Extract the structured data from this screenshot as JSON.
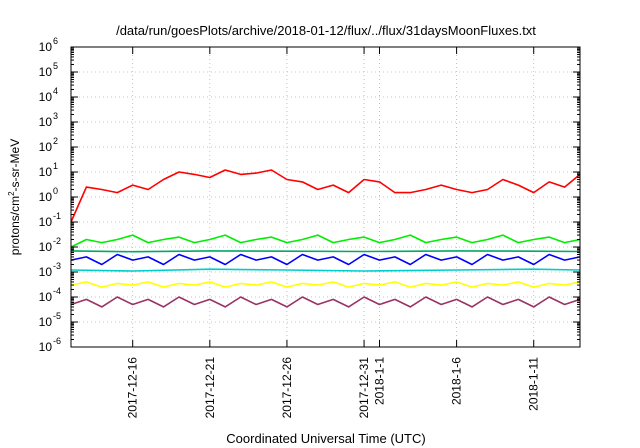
{
  "chart_data": {
    "type": "line",
    "title": "/data/run/goesPlots/archive/2018-01-12/flux/../flux/31daysMoonFluxes.txt",
    "xlabel": "Coordinated Universal Time (UTC)",
    "ylabel": {
      "prefix": "protons/cm",
      "sup": "2",
      "suffix": "-s-sr-MeV"
    },
    "yscale": "log",
    "ylim": [
      1e-06,
      1000000.0
    ],
    "xlim": [
      "2017-12-12",
      "2018-01-14"
    ],
    "grid": true,
    "x_ticks": [
      {
        "date": "2017-12-16",
        "label": "2017-12-16"
      },
      {
        "date": "2017-12-21",
        "label": "2017-12-21"
      },
      {
        "date": "2017-12-26",
        "label": "2017-12-26"
      },
      {
        "date": "2017-12-31",
        "label": "2017-12-31"
      },
      {
        "date": "2018-01-01",
        "label": "2018-1-1"
      },
      {
        "date": "2018-01-06",
        "label": "2018-1-6"
      },
      {
        "date": "2018-01-11",
        "label": "2018-1-11"
      }
    ],
    "y_ticks": [
      {
        "value": 1e-06,
        "base": "10",
        "exp": "-6"
      },
      {
        "value": 1e-05,
        "base": "10",
        "exp": "-5"
      },
      {
        "value": 0.0001,
        "base": "10",
        "exp": "-4"
      },
      {
        "value": 0.001,
        "base": "10",
        "exp": "-3"
      },
      {
        "value": 0.01,
        "base": "10",
        "exp": "-2"
      },
      {
        "value": 0.1,
        "base": "10",
        "exp": "-1"
      },
      {
        "value": 1,
        "base": "10",
        "exp": "0"
      },
      {
        "value": 10,
        "base": "10",
        "exp": "1"
      },
      {
        "value": 100,
        "base": "10",
        "exp": "2"
      },
      {
        "value": 1000,
        "base": "10",
        "exp": "3"
      },
      {
        "value": 10000,
        "base": "10",
        "exp": "4"
      },
      {
        "value": 100000,
        "base": "10",
        "exp": "5"
      },
      {
        "value": 1000000,
        "base": "10",
        "exp": "6"
      }
    ],
    "series": [
      {
        "color": "#ff0000",
        "x": [
          "2017-12-12",
          "2017-12-12T12:00",
          "2017-12-13",
          "2017-12-14",
          "2017-12-15",
          "2017-12-16",
          "2017-12-17",
          "2017-12-18",
          "2017-12-19",
          "2017-12-20",
          "2017-12-21",
          "2017-12-22",
          "2017-12-23",
          "2017-12-24",
          "2017-12-25",
          "2017-12-26",
          "2017-12-27",
          "2017-12-28",
          "2017-12-29",
          "2017-12-30",
          "2017-12-31",
          "2018-01-01",
          "2018-01-02",
          "2018-01-03",
          "2018-01-04",
          "2018-01-05",
          "2018-01-06",
          "2018-01-07",
          "2018-01-08",
          "2018-01-09",
          "2018-01-10",
          "2018-01-11",
          "2018-01-12",
          "2018-01-13",
          "2018-01-14"
        ],
        "y": [
          0.1,
          0.5,
          2.5,
          2,
          1.5,
          3,
          2,
          5,
          10,
          8,
          6,
          12,
          8,
          9,
          12,
          5,
          4,
          2,
          3,
          1.5,
          5,
          4,
          1.5,
          1.5,
          2,
          3,
          2,
          1.5,
          2,
          5,
          3,
          1.5,
          4,
          2.5,
          8
        ]
      },
      {
        "color": "#00ee00",
        "x": [
          "2017-12-12",
          "2017-12-13",
          "2017-12-14",
          "2017-12-15",
          "2017-12-16",
          "2017-12-17",
          "2017-12-18",
          "2017-12-19",
          "2017-12-20",
          "2017-12-21",
          "2017-12-22",
          "2017-12-23",
          "2017-12-24",
          "2017-12-25",
          "2017-12-26",
          "2017-12-27",
          "2017-12-28",
          "2017-12-29",
          "2017-12-30",
          "2017-12-31",
          "2018-01-01",
          "2018-01-02",
          "2018-01-03",
          "2018-01-04",
          "2018-01-05",
          "2018-01-06",
          "2018-01-07",
          "2018-01-08",
          "2018-01-09",
          "2018-01-10",
          "2018-01-11",
          "2018-01-12",
          "2018-01-13",
          "2018-01-14"
        ],
        "y": [
          0.01,
          0.02,
          0.015,
          0.02,
          0.03,
          0.015,
          0.02,
          0.025,
          0.015,
          0.02,
          0.03,
          0.015,
          0.02,
          0.025,
          0.015,
          0.02,
          0.03,
          0.015,
          0.02,
          0.025,
          0.015,
          0.02,
          0.03,
          0.015,
          0.02,
          0.025,
          0.015,
          0.02,
          0.03,
          0.015,
          0.02,
          0.025,
          0.015,
          0.02
        ]
      },
      {
        "color": "#00cccc",
        "x": [
          "2017-12-12",
          "2017-12-16",
          "2017-12-21",
          "2017-12-26",
          "2017-12-31",
          "2018-01-06",
          "2018-01-11",
          "2018-01-14"
        ],
        "y": [
          0.0012,
          0.0011,
          0.0013,
          0.0012,
          0.0011,
          0.0012,
          0.0013,
          0.0012
        ]
      },
      {
        "color": "#00aa66",
        "x": [
          "2017-12-12",
          "2017-12-16",
          "2017-12-21",
          "2017-12-26",
          "2017-12-31",
          "2018-01-06",
          "2018-01-11",
          "2018-01-14"
        ],
        "y": [
          0.007,
          0.0065,
          0.007,
          0.0068,
          0.0066,
          0.007,
          0.0068,
          0.0066
        ]
      },
      {
        "color": "#0000ff",
        "x": [
          "2017-12-12",
          "2017-12-13",
          "2017-12-14",
          "2017-12-15",
          "2017-12-16",
          "2017-12-17",
          "2017-12-18",
          "2017-12-19",
          "2017-12-20",
          "2017-12-21",
          "2017-12-22",
          "2017-12-23",
          "2017-12-24",
          "2017-12-25",
          "2017-12-26",
          "2017-12-27",
          "2017-12-28",
          "2017-12-29",
          "2017-12-30",
          "2017-12-31",
          "2018-01-01",
          "2018-01-02",
          "2018-01-03",
          "2018-01-04",
          "2018-01-05",
          "2018-01-06",
          "2018-01-07",
          "2018-01-08",
          "2018-01-09",
          "2018-01-10",
          "2018-01-11",
          "2018-01-12",
          "2018-01-13",
          "2018-01-14"
        ],
        "y": [
          0.003,
          0.004,
          0.002,
          0.005,
          0.003,
          0.004,
          0.002,
          0.005,
          0.003,
          0.004,
          0.002,
          0.005,
          0.003,
          0.004,
          0.002,
          0.005,
          0.003,
          0.004,
          0.002,
          0.005,
          0.003,
          0.004,
          0.002,
          0.005,
          0.003,
          0.004,
          0.002,
          0.005,
          0.003,
          0.004,
          0.002,
          0.005,
          0.003,
          0.004
        ]
      },
      {
        "color": "#ffff00",
        "x": [
          "2017-12-12",
          "2017-12-13",
          "2017-12-14",
          "2017-12-15",
          "2017-12-16",
          "2017-12-17",
          "2017-12-18",
          "2017-12-19",
          "2017-12-20",
          "2017-12-21",
          "2017-12-22",
          "2017-12-23",
          "2017-12-24",
          "2017-12-25",
          "2017-12-26",
          "2017-12-27",
          "2017-12-28",
          "2017-12-29",
          "2017-12-30",
          "2017-12-31",
          "2018-01-01",
          "2018-01-02",
          "2018-01-03",
          "2018-01-04",
          "2018-01-05",
          "2018-01-06",
          "2018-01-07",
          "2018-01-08",
          "2018-01-09",
          "2018-01-10",
          "2018-01-11",
          "2018-01-12",
          "2018-01-13",
          "2018-01-14"
        ],
        "y": [
          0.0003,
          0.0004,
          0.00025,
          0.00035,
          0.0003,
          0.0004,
          0.00025,
          0.00035,
          0.0003,
          0.0004,
          0.00025,
          0.00035,
          0.0003,
          0.0004,
          0.00025,
          0.00035,
          0.0003,
          0.0004,
          0.00025,
          0.00035,
          0.0003,
          0.0004,
          0.00025,
          0.00035,
          0.0003,
          0.0004,
          0.00025,
          0.00035,
          0.0003,
          0.0004,
          0.00025,
          0.00035,
          0.0003,
          0.0004
        ]
      },
      {
        "color": "#993366",
        "x": [
          "2017-12-12",
          "2017-12-13",
          "2017-12-14",
          "2017-12-15",
          "2017-12-16",
          "2017-12-17",
          "2017-12-18",
          "2017-12-19",
          "2017-12-20",
          "2017-12-21",
          "2017-12-22",
          "2017-12-23",
          "2017-12-24",
          "2017-12-25",
          "2017-12-26",
          "2017-12-27",
          "2017-12-28",
          "2017-12-29",
          "2017-12-30",
          "2017-12-31",
          "2018-01-01",
          "2018-01-02",
          "2018-01-03",
          "2018-01-04",
          "2018-01-05",
          "2018-01-06",
          "2018-01-07",
          "2018-01-08",
          "2018-01-09",
          "2018-01-10",
          "2018-01-11",
          "2018-01-12",
          "2018-01-13",
          "2018-01-14"
        ],
        "y": [
          5e-05,
          8e-05,
          4e-05,
          0.0001,
          5e-05,
          8e-05,
          4e-05,
          0.0001,
          5e-05,
          8e-05,
          4e-05,
          0.0001,
          5e-05,
          8e-05,
          4e-05,
          0.0001,
          5e-05,
          8e-05,
          4e-05,
          0.0001,
          5e-05,
          8e-05,
          4e-05,
          0.0001,
          5e-05,
          8e-05,
          4e-05,
          0.0001,
          5e-05,
          8e-05,
          4e-05,
          0.0001,
          5e-05,
          8e-05
        ]
      }
    ]
  }
}
